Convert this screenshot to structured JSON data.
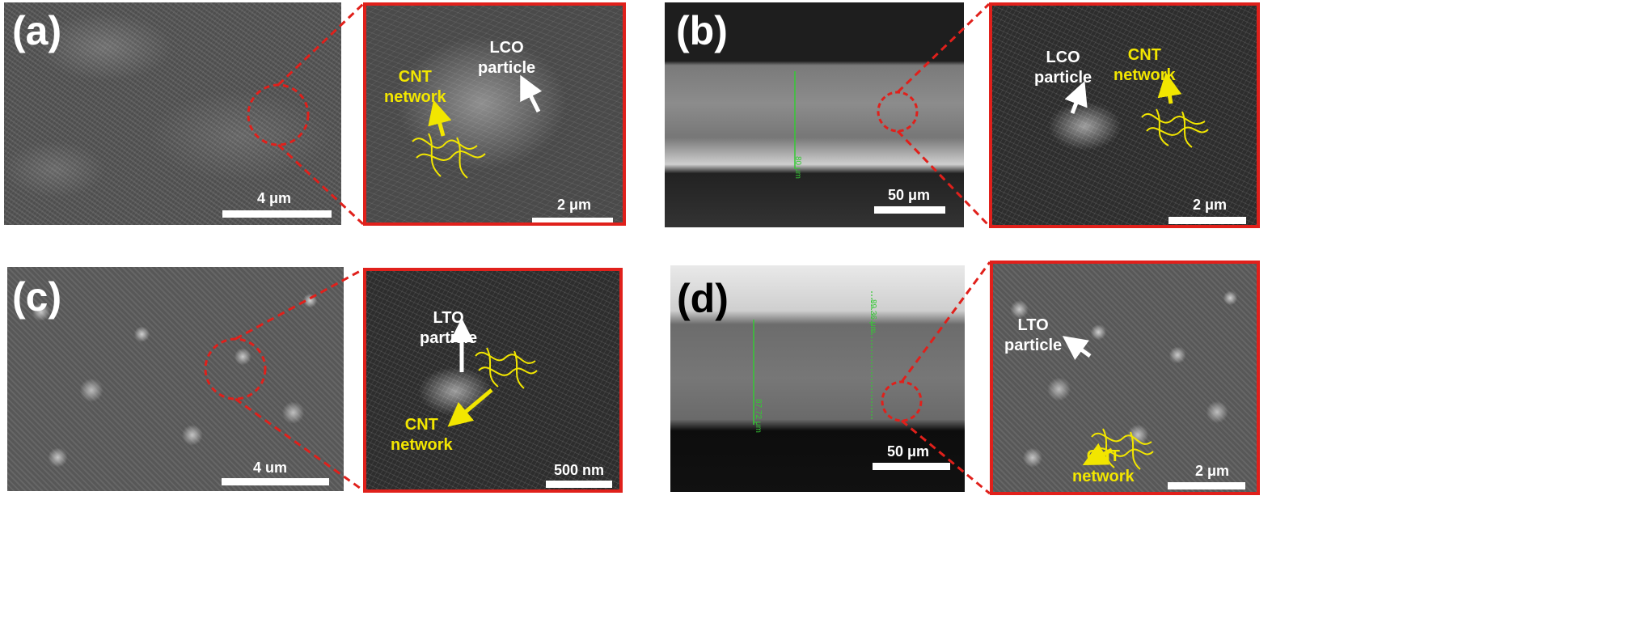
{
  "panels": {
    "a": {
      "label": "(a)",
      "overview_scale": "4 μm",
      "zoom_scale": "2 μm",
      "zoom_particle": [
        "LCO",
        "particle"
      ],
      "zoom_network": [
        "CNT",
        "network"
      ]
    },
    "b": {
      "label": "(b)",
      "overview_scale": "50 μm",
      "measure": "80 μm",
      "zoom_scale": "2 μm",
      "zoom_particle": [
        "LCO",
        "particle"
      ],
      "zoom_network": [
        "CNT",
        "network"
      ]
    },
    "c": {
      "label": "(c)",
      "overview_scale": "4 um",
      "zoom_scale": "500 nm",
      "zoom_particle": [
        "LTO",
        "particle"
      ],
      "zoom_network": [
        "CNT",
        "network"
      ]
    },
    "d": {
      "label": "(d)",
      "overview_scale": "50 μm",
      "measure_left": "87.72 μm",
      "measure_right": "89.36 μm",
      "zoom_scale": "2 μm",
      "zoom_particle": [
        "LTO",
        "particle"
      ],
      "zoom_network": [
        "CNT",
        "network"
      ]
    }
  },
  "colors": {
    "frame_red": "#e0201b",
    "annotation_yellow": "#f2e600",
    "measure_green": "#35c935"
  }
}
